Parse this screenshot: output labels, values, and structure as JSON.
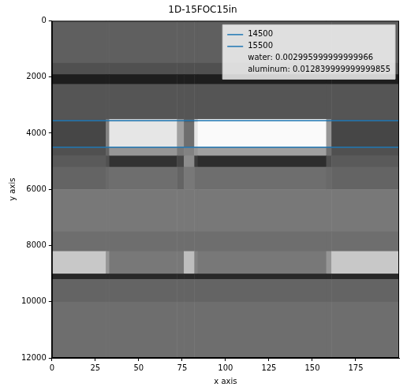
{
  "chart_data": {
    "type": "heatmap",
    "title": "1D-15FOC15in",
    "x_label": "x axis",
    "y_label": "y axis",
    "xlim": [
      0,
      200
    ],
    "ylim": [
      12000,
      0
    ],
    "xticks": [
      0,
      25,
      50,
      75,
      100,
      125,
      150,
      175
    ],
    "yticks": [
      0,
      2000,
      4000,
      6000,
      8000,
      10000,
      12000
    ],
    "grid": false,
    "legend": "upper right",
    "x_edges": [
      0,
      31,
      33,
      72,
      76,
      82,
      84,
      158,
      161,
      200
    ],
    "y_edges": [
      0,
      1500,
      1900,
      2250,
      3500,
      3600,
      4500,
      4800,
      5200,
      6000,
      7500,
      8200,
      9000,
      9200,
      10000,
      12000
    ],
    "value_range": [
      0,
      255
    ],
    "cells": [
      [
        95,
        95,
        95,
        95,
        95,
        95,
        95,
        95,
        95
      ],
      [
        80,
        80,
        80,
        80,
        80,
        80,
        80,
        80,
        80
      ],
      [
        30,
        30,
        30,
        30,
        30,
        30,
        30,
        30,
        30
      ],
      [
        85,
        85,
        85,
        85,
        85,
        85,
        85,
        85,
        85
      ],
      [
        75,
        120,
        220,
        150,
        90,
        200,
        245,
        140,
        75
      ],
      [
        70,
        130,
        230,
        160,
        110,
        230,
        250,
        150,
        70
      ],
      [
        80,
        100,
        150,
        120,
        130,
        150,
        160,
        110,
        80
      ],
      [
        90,
        80,
        50,
        70,
        140,
        60,
        45,
        80,
        90
      ],
      [
        100,
        105,
        110,
        100,
        120,
        110,
        110,
        105,
        100
      ],
      [
        120,
        120,
        120,
        120,
        120,
        120,
        120,
        120,
        120
      ],
      [
        110,
        110,
        110,
        110,
        110,
        110,
        110,
        110,
        110
      ],
      [
        200,
        150,
        120,
        120,
        190,
        130,
        120,
        150,
        200
      ],
      [
        40,
        40,
        40,
        40,
        40,
        40,
        40,
        40,
        40
      ],
      [
        100,
        100,
        100,
        100,
        100,
        100,
        100,
        100,
        100
      ],
      [
        110,
        110,
        110,
        110,
        110,
        110,
        110,
        110,
        110
      ]
    ],
    "series": [
      {
        "name": "14500",
        "color": "#1f77b4",
        "type": "hline",
        "y": 3550
      },
      {
        "name": "15500",
        "color": "#1f77b4",
        "type": "hline",
        "y": 4500
      }
    ],
    "legend_texts": [
      "water: 0.002995999999999966",
      "aluminum: 0.012839999999999855"
    ]
  }
}
